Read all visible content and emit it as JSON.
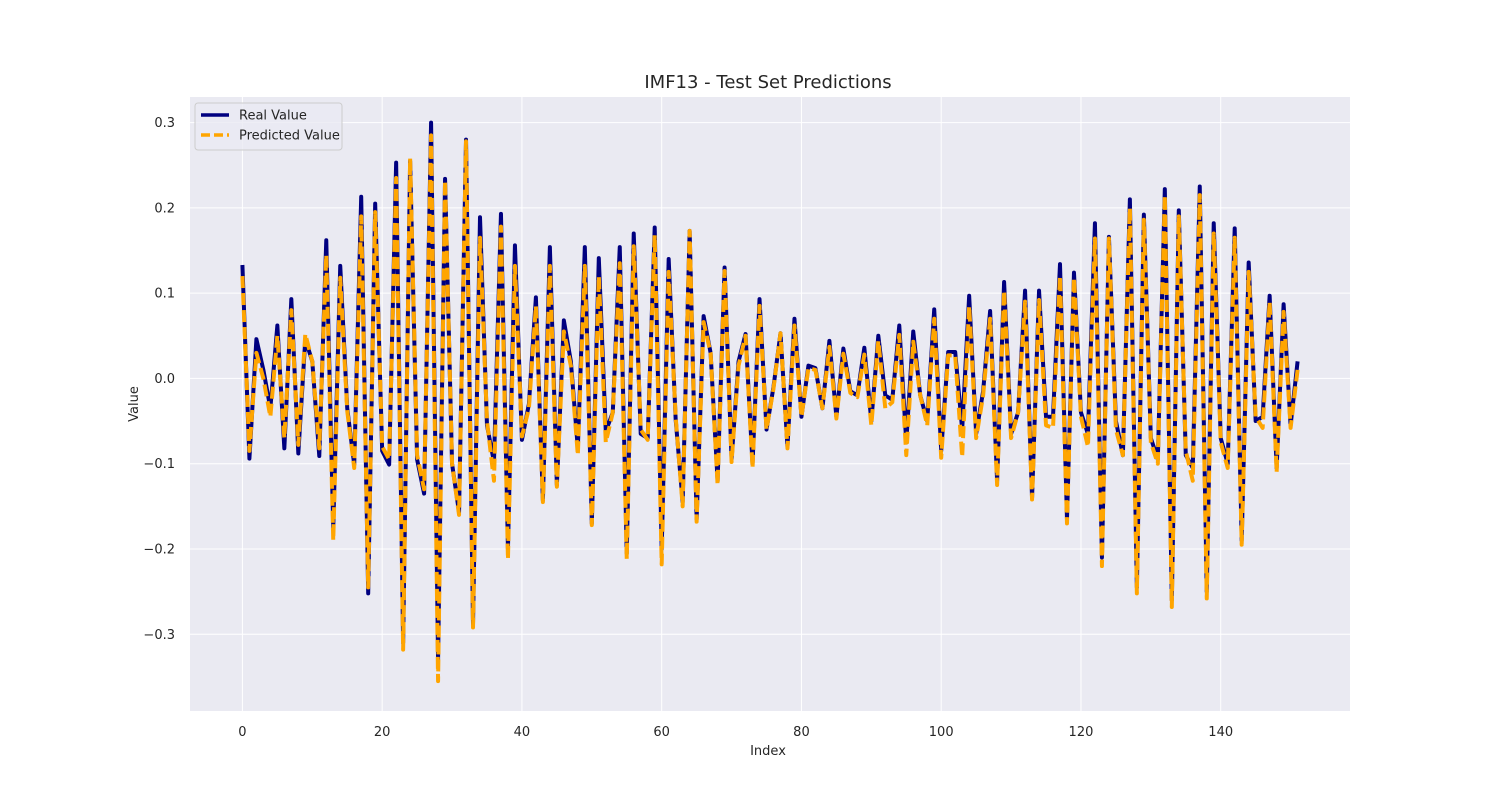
{
  "chart_data": {
    "type": "line",
    "title": "IMF13 - Test Set Predictions",
    "xlabel": "Index",
    "ylabel": "Value",
    "xlim": [
      -7.5,
      158.5
    ],
    "ylim": [
      -0.39,
      0.33
    ],
    "xticks": [
      0,
      20,
      40,
      60,
      80,
      100,
      120,
      140
    ],
    "yticks": [
      -0.3,
      -0.2,
      -0.1,
      0.0,
      0.1,
      0.2,
      0.3
    ],
    "ytick_labels": [
      "−0.3",
      "−0.2",
      "−0.1",
      "0.0",
      "0.1",
      "0.2",
      "0.3"
    ],
    "grid": true,
    "legend_position": "upper-left",
    "colors": {
      "real": "#000080",
      "predicted": "#FFA500",
      "plot_bg": "#EAEAF2",
      "grid": "#FFFFFF"
    },
    "x": [
      0,
      1,
      2,
      3,
      4,
      5,
      6,
      7,
      8,
      9,
      10,
      11,
      12,
      13,
      14,
      15,
      16,
      17,
      18,
      19,
      20,
      21,
      22,
      23,
      24,
      25,
      26,
      27,
      28,
      29,
      30,
      31,
      32,
      33,
      34,
      35,
      36,
      37,
      38,
      39,
      40,
      41,
      42,
      43,
      44,
      45,
      46,
      47,
      48,
      49,
      50,
      51,
      52,
      53,
      54,
      55,
      56,
      57,
      58,
      59,
      60,
      61,
      62,
      63,
      64,
      65,
      66,
      67,
      68,
      69,
      70,
      71,
      72,
      73,
      74,
      75,
      76,
      77,
      78,
      79,
      80,
      81,
      82,
      83,
      84,
      85,
      86,
      87,
      88,
      89,
      90,
      91,
      92,
      93,
      94,
      95,
      96,
      97,
      98,
      99,
      100,
      101,
      102,
      103,
      104,
      105,
      106,
      107,
      108,
      109,
      110,
      111,
      112,
      113,
      114,
      115,
      116,
      117,
      118,
      119,
      120,
      121,
      122,
      123,
      124,
      125,
      126,
      127,
      128,
      129,
      130,
      131,
      132,
      133,
      134,
      135,
      136,
      137,
      138,
      139,
      140,
      141,
      142,
      143,
      144,
      145,
      146,
      147,
      148,
      149,
      150,
      151
    ],
    "series": [
      {
        "name": "Real Value",
        "style": "solid",
        "values": [
          0.133,
          -0.094,
          0.046,
          0.01,
          -0.035,
          0.062,
          -0.082,
          0.093,
          -0.088,
          0.046,
          0.02,
          -0.091,
          0.162,
          -0.175,
          0.132,
          -0.035,
          -0.101,
          0.213,
          -0.252,
          0.205,
          -0.085,
          -0.101,
          0.253,
          -0.31,
          0.255,
          -0.095,
          -0.135,
          0.3,
          -0.33,
          0.234,
          -0.1,
          -0.157,
          0.28,
          -0.288,
          0.189,
          -0.055,
          -0.098,
          0.193,
          -0.2,
          0.156,
          -0.072,
          -0.03,
          0.095,
          -0.143,
          0.154,
          -0.125,
          0.068,
          0.02,
          -0.082,
          0.154,
          -0.17,
          0.141,
          -0.062,
          -0.04,
          0.154,
          -0.205,
          0.17,
          -0.065,
          -0.07,
          0.177,
          -0.2,
          0.14,
          -0.048,
          -0.145,
          0.173,
          -0.165,
          0.073,
          0.03,
          -0.12,
          0.13,
          -0.095,
          0.02,
          0.052,
          -0.1,
          0.093,
          -0.06,
          -0.01,
          0.053,
          -0.08,
          0.07,
          -0.045,
          0.015,
          0.012,
          -0.035,
          0.044,
          -0.045,
          0.035,
          -0.015,
          -0.02,
          0.036,
          -0.05,
          0.05,
          -0.02,
          -0.025,
          0.062,
          -0.075,
          0.055,
          -0.02,
          -0.05,
          0.081,
          -0.085,
          0.031,
          0.031,
          -0.06,
          0.097,
          -0.065,
          -0.015,
          0.079,
          -0.12,
          0.113,
          -0.065,
          -0.04,
          0.103,
          -0.14,
          0.103,
          -0.045,
          -0.045,
          0.134,
          -0.165,
          0.124,
          -0.04,
          -0.065,
          0.182,
          -0.21,
          0.166,
          -0.05,
          -0.09,
          0.21,
          -0.245,
          0.192,
          -0.07,
          -0.095,
          0.222,
          -0.26,
          0.197,
          -0.09,
          -0.105,
          0.225,
          -0.25,
          0.182,
          -0.07,
          -0.1,
          0.176,
          -0.19,
          0.136,
          -0.05,
          -0.045,
          0.097,
          -0.105,
          0.087,
          -0.055,
          0.02
        ]
      },
      {
        "name": "Predicted Value",
        "style": "dashed",
        "values": [
          0.12,
          -0.085,
          0.03,
          0.0,
          -0.045,
          0.05,
          -0.07,
          0.08,
          -0.078,
          0.052,
          0.02,
          -0.082,
          0.145,
          -0.19,
          0.118,
          -0.038,
          -0.105,
          0.19,
          -0.245,
          0.195,
          -0.08,
          -0.095,
          0.235,
          -0.318,
          0.258,
          -0.09,
          -0.13,
          0.285,
          -0.355,
          0.232,
          -0.1,
          -0.16,
          0.278,
          -0.292,
          0.165,
          -0.05,
          -0.12,
          0.178,
          -0.212,
          0.132,
          -0.068,
          -0.035,
          0.085,
          -0.145,
          0.132,
          -0.127,
          0.055,
          0.015,
          -0.09,
          0.132,
          -0.172,
          0.12,
          -0.075,
          -0.04,
          0.135,
          -0.212,
          0.155,
          -0.06,
          -0.072,
          0.168,
          -0.218,
          0.125,
          -0.045,
          -0.15,
          0.173,
          -0.168,
          0.066,
          0.03,
          -0.125,
          0.126,
          -0.098,
          0.015,
          0.05,
          -0.105,
          0.085,
          -0.06,
          -0.012,
          0.053,
          -0.082,
          0.062,
          -0.045,
          0.012,
          0.01,
          -0.035,
          0.037,
          -0.047,
          0.029,
          -0.017,
          -0.022,
          0.028,
          -0.055,
          0.044,
          -0.035,
          -0.028,
          0.051,
          -0.09,
          0.043,
          -0.02,
          -0.055,
          0.07,
          -0.093,
          0.027,
          0.027,
          -0.092,
          0.085,
          -0.07,
          -0.02,
          0.07,
          -0.125,
          0.103,
          -0.07,
          -0.04,
          0.09,
          -0.142,
          0.092,
          -0.055,
          -0.058,
          0.12,
          -0.17,
          0.118,
          -0.045,
          -0.08,
          0.164,
          -0.22,
          0.164,
          -0.06,
          -0.09,
          0.2,
          -0.252,
          0.186,
          -0.075,
          -0.1,
          0.215,
          -0.268,
          0.19,
          -0.085,
          -0.12,
          0.215,
          -0.258,
          0.17,
          -0.075,
          -0.105,
          0.165,
          -0.195,
          0.125,
          -0.045,
          -0.058,
          0.09,
          -0.11,
          0.078,
          -0.058,
          0.01
        ]
      }
    ]
  }
}
